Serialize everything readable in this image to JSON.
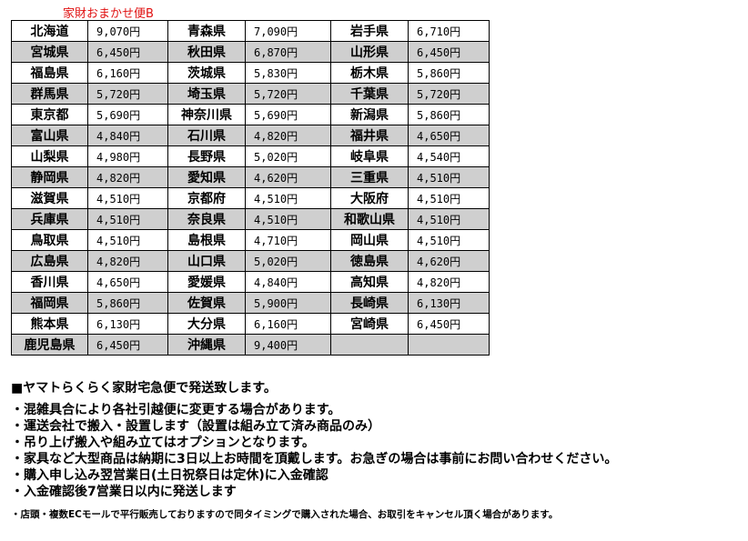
{
  "title": "家財おまかせ便B",
  "rows": [
    [
      [
        "北海道",
        "9,070円"
      ],
      [
        "青森県",
        "7,090円"
      ],
      [
        "岩手県",
        "6,710円"
      ]
    ],
    [
      [
        "宮城県",
        "6,450円"
      ],
      [
        "秋田県",
        "6,870円"
      ],
      [
        "山形県",
        "6,450円"
      ]
    ],
    [
      [
        "福島県",
        "6,160円"
      ],
      [
        "茨城県",
        "5,830円"
      ],
      [
        "栃木県",
        "5,860円"
      ]
    ],
    [
      [
        "群馬県",
        "5,720円"
      ],
      [
        "埼玉県",
        "5,720円"
      ],
      [
        "千葉県",
        "5,720円"
      ]
    ],
    [
      [
        "東京都",
        "5,690円"
      ],
      [
        "神奈川県",
        "5,690円"
      ],
      [
        "新潟県",
        "5,860円"
      ]
    ],
    [
      [
        "富山県",
        "4,840円"
      ],
      [
        "石川県",
        "4,820円"
      ],
      [
        "福井県",
        "4,650円"
      ]
    ],
    [
      [
        "山梨県",
        "4,980円"
      ],
      [
        "長野県",
        "5,020円"
      ],
      [
        "岐阜県",
        "4,540円"
      ]
    ],
    [
      [
        "静岡県",
        "4,820円"
      ],
      [
        "愛知県",
        "4,620円"
      ],
      [
        "三重県",
        "4,510円"
      ]
    ],
    [
      [
        "滋賀県",
        "4,510円"
      ],
      [
        "京都府",
        "4,510円"
      ],
      [
        "大阪府",
        "4,510円"
      ]
    ],
    [
      [
        "兵庫県",
        "4,510円"
      ],
      [
        "奈良県",
        "4,510円"
      ],
      [
        "和歌山県",
        "4,510円"
      ]
    ],
    [
      [
        "鳥取県",
        "4,510円"
      ],
      [
        "島根県",
        "4,710円"
      ],
      [
        "岡山県",
        "4,510円"
      ]
    ],
    [
      [
        "広島県",
        "4,820円"
      ],
      [
        "山口県",
        "5,020円"
      ],
      [
        "徳島県",
        "4,620円"
      ]
    ],
    [
      [
        "香川県",
        "4,650円"
      ],
      [
        "愛媛県",
        "4,840円"
      ],
      [
        "高知県",
        "4,820円"
      ]
    ],
    [
      [
        "福岡県",
        "5,860円"
      ],
      [
        "佐賀県",
        "5,900円"
      ],
      [
        "長崎県",
        "6,130円"
      ]
    ],
    [
      [
        "熊本県",
        "6,130円"
      ],
      [
        "大分県",
        "6,160円"
      ],
      [
        "宮崎県",
        "6,450円"
      ]
    ],
    [
      [
        "鹿児島県",
        "6,450円"
      ],
      [
        "沖縄県",
        "9,400円"
      ],
      [
        "",
        ""
      ]
    ]
  ],
  "notes": {
    "heading": "■ヤマトらくらく家財宅急便で発送致します。",
    "items": [
      "・混雑具合により各社引越便に変更する場合があります。",
      "・運送会社で搬入・設置します（設置は組み立て済み商品のみ）",
      "・吊り上げ搬入や組み立てはオプションとなります。",
      "・家具など大型商品は納期に3日以上お時間を頂戴します。お急ぎの場合は事前にお問い合わせください。",
      "・購入申し込み翌営業日(土日祝祭日は定休)に入金確認",
      "・入金確認後7営業日以内に発送します"
    ],
    "footnote": "・店頭・複数ECモールで平行販売しておりますので同タイミングで購入された場合、お取引をキャンセル頂く場合があります。"
  },
  "colors": {
    "title": "#e01010",
    "alt_row": "#cfcfcf"
  }
}
